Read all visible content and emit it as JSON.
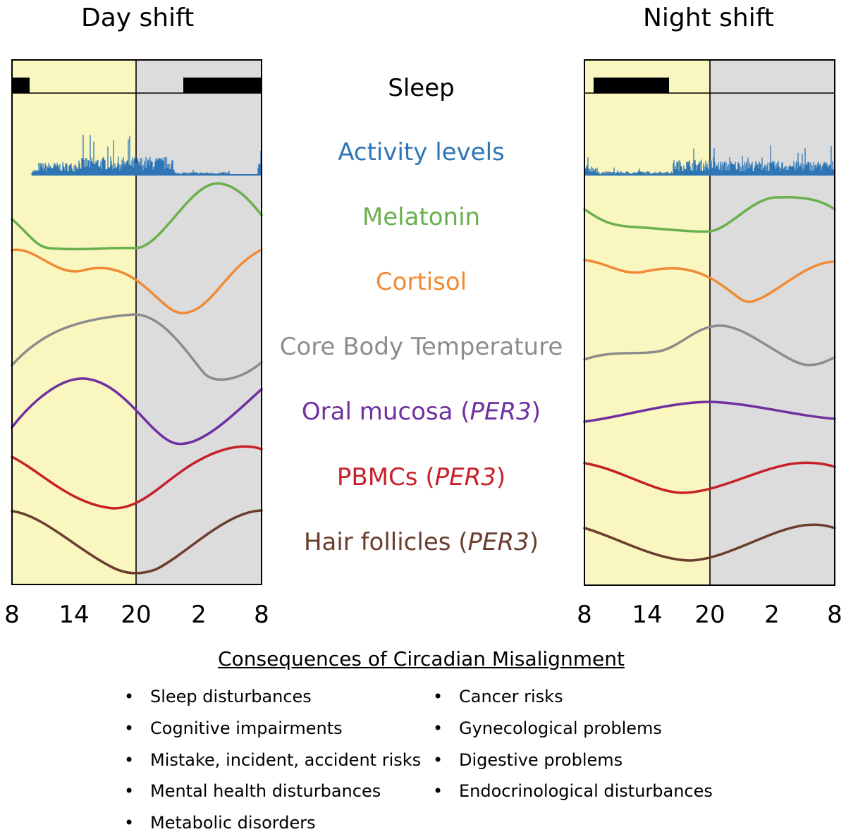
{
  "panels": [
    {
      "title": "Day shift",
      "ticks": [
        "8",
        "14",
        "20",
        "2",
        "8"
      ],
      "sleep": [
        [
          8,
          10
        ],
        [
          2,
          8
        ]
      ]
    },
    {
      "title": "Night shift",
      "ticks": [
        "8",
        "14",
        "20",
        "2",
        "8"
      ],
      "sleep": [
        [
          9,
          15
        ]
      ]
    }
  ],
  "tracks": {
    "sleep": "Sleep",
    "activity": "Activity levels",
    "melatonin": "Melatonin",
    "cortisol": "Cortisol",
    "core_temp": "Core Body Temperature",
    "oral_name": "Oral mucosa (",
    "oral_gene": "PER3",
    "oral_close": ")",
    "pbmc_name": "PBMCs (",
    "pbmc_gene": "PER3",
    "pbmc_close": ")",
    "hair_name": "Hair follicles (",
    "hair_gene": "PER3",
    "hair_close": ")"
  },
  "colors": {
    "day_shading": "#faf6c0",
    "night_shading": "#dcdcdc",
    "activity": "#2e75b6",
    "melatonin": "#6ab04c",
    "cortisol": "#f08a34",
    "core_temp": "#8c8c8c",
    "oral": "#7030a0",
    "pbmc": "#c8202a",
    "hair": "#6b3d2e"
  },
  "consequences": {
    "title": "Consequences of Circadian Misalignment",
    "left": [
      "Sleep disturbances",
      "Cognitive impairments",
      "Mistake, incident, accident risks",
      "Mental health disturbances",
      "Metabolic disorders"
    ],
    "right": [
      "Cancer risks",
      "Gynecological problems",
      "Digestive problems",
      "Endocrinological disturbances"
    ]
  }
}
